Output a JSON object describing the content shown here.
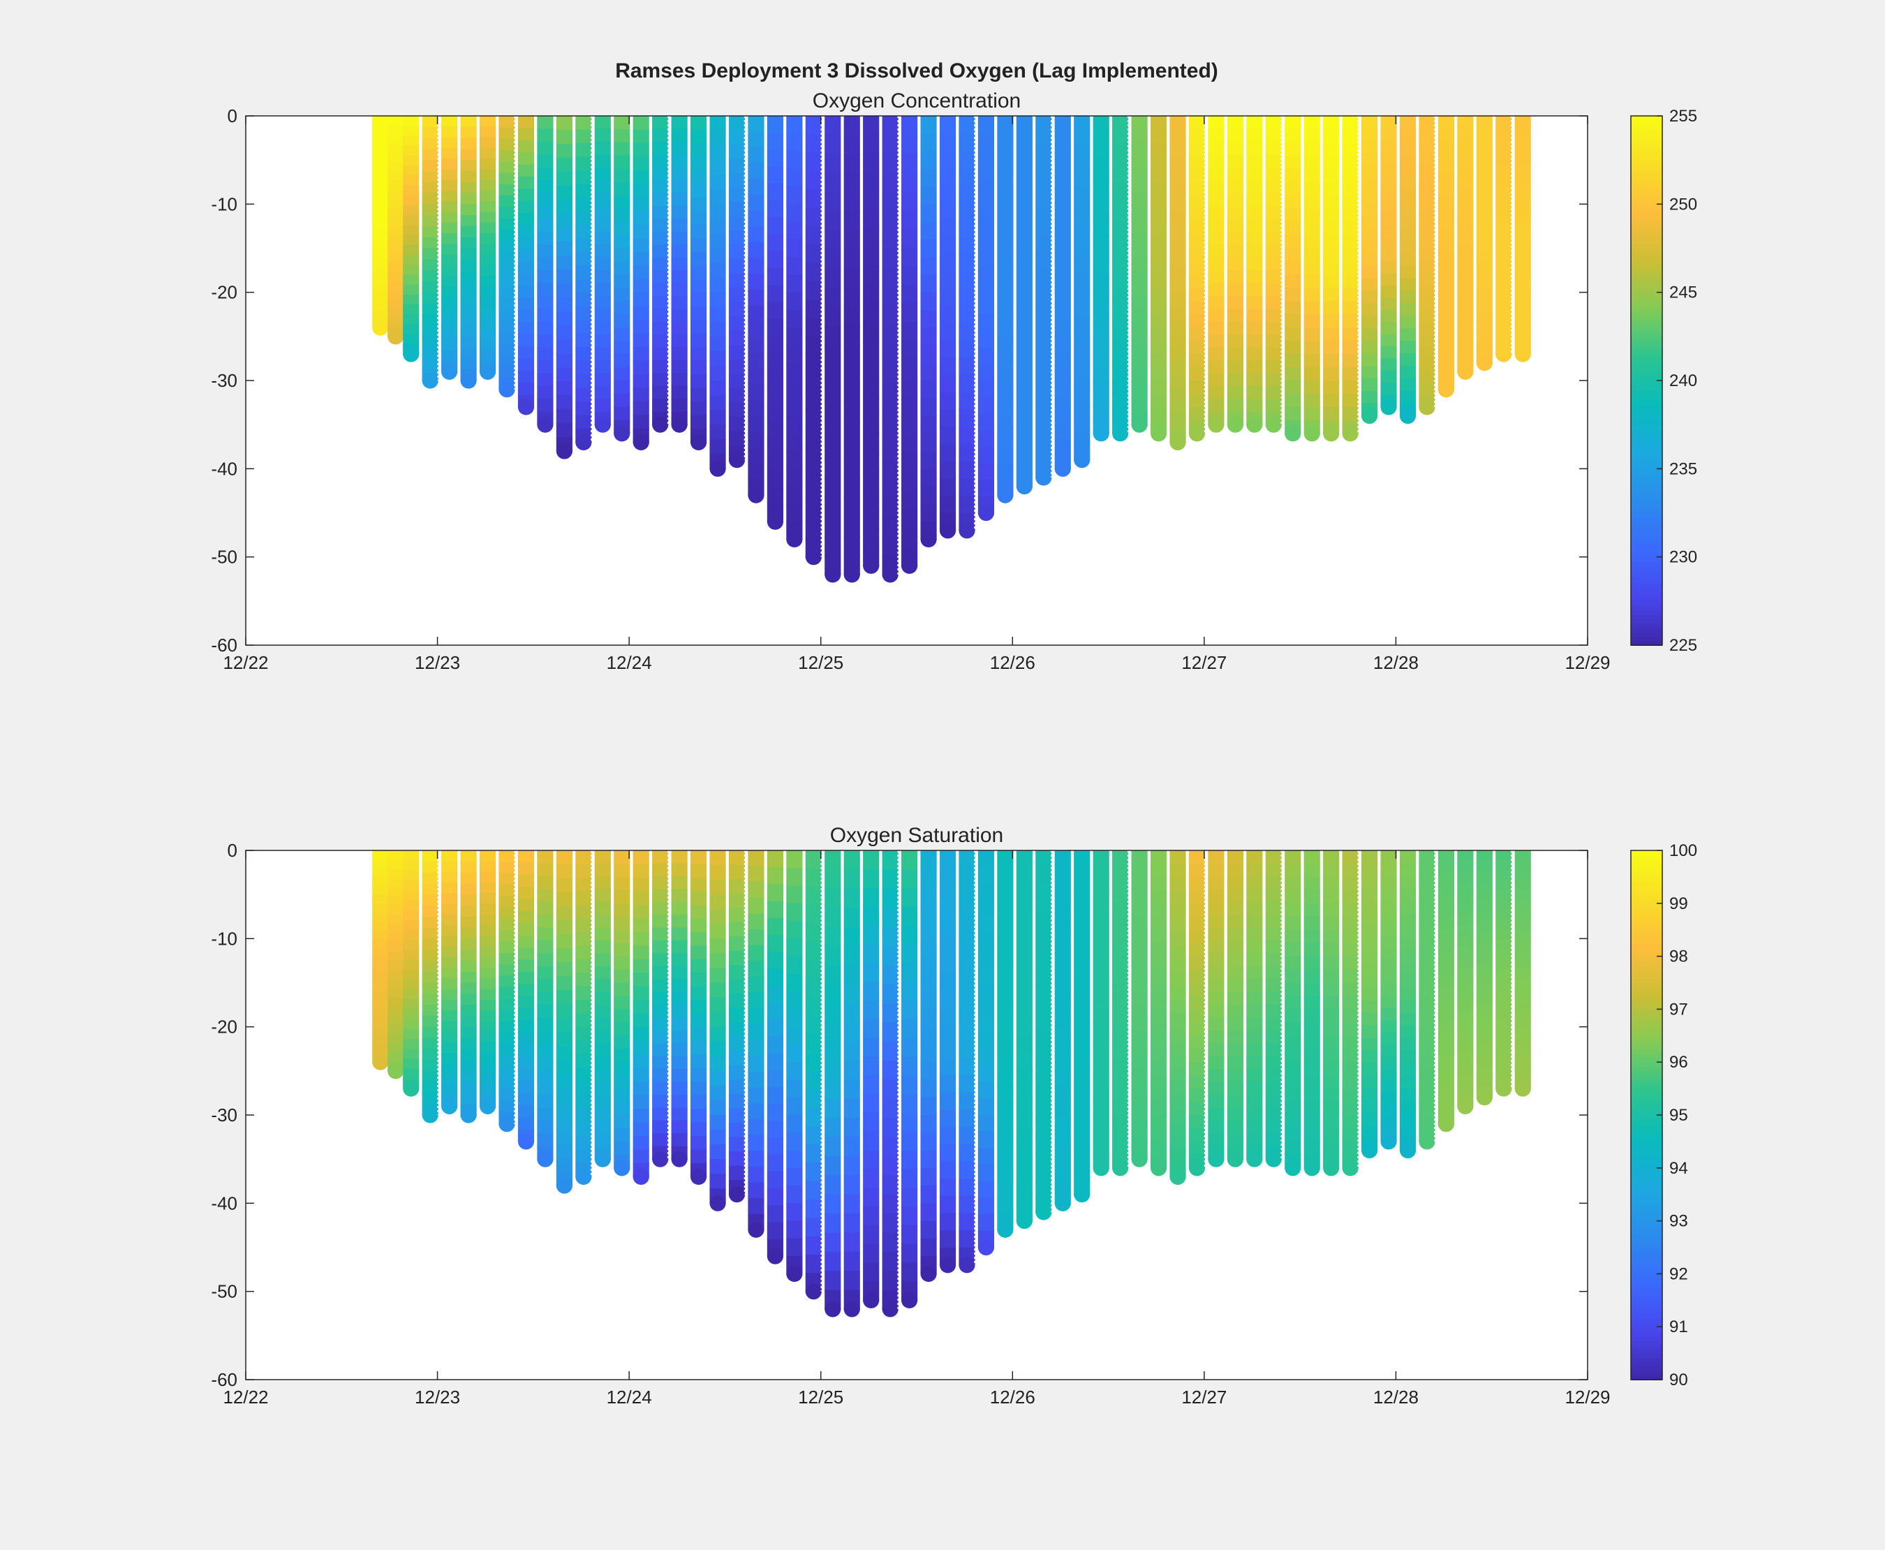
{
  "figure": {
    "title": "Ramses Deployment 3 Dissolved Oxygen (Lag Implemented)"
  },
  "colormap": [
    "#3e26a8",
    "#4746ec",
    "#3b69fe",
    "#2b8ced",
    "#1ca9df",
    "#09bbbc",
    "#2cc490",
    "#82cb56",
    "#ccbe35",
    "#fdbe3c",
    "#f9dd27",
    "#f9fb15"
  ],
  "chart_data": [
    {
      "type": "scatter",
      "title": "Oxygen Concentration",
      "xlabel": "",
      "ylabel": "",
      "x_ticks": [
        "12/22",
        "12/23",
        "12/24",
        "12/25",
        "12/26",
        "12/27",
        "12/28",
        "12/29"
      ],
      "xlim": [
        "12/22",
        "12/29"
      ],
      "ylim": [
        -60,
        0
      ],
      "y_ticks": [
        0,
        -10,
        -20,
        -30,
        -40,
        -50,
        -60
      ],
      "colorbar": {
        "min": 225,
        "max": 255,
        "ticks": [
          255,
          250,
          245,
          240,
          235,
          230,
          225
        ]
      },
      "grid": false,
      "columns": [
        {
          "day": 0.7,
          "bottom": -24,
          "surface": 255,
          "mid": 255,
          "deep": 253
        },
        {
          "day": 0.78,
          "bottom": -25,
          "surface": 255,
          "mid": 252,
          "deep": 248
        },
        {
          "day": 0.86,
          "bottom": -27,
          "surface": 255,
          "mid": 247,
          "deep": 238
        },
        {
          "day": 0.96,
          "bottom": -30,
          "surface": 253,
          "mid": 243,
          "deep": 235
        },
        {
          "day": 1.06,
          "bottom": -29,
          "surface": 254,
          "mid": 242,
          "deep": 234
        },
        {
          "day": 1.16,
          "bottom": -30,
          "surface": 253,
          "mid": 240,
          "deep": 233
        },
        {
          "day": 1.26,
          "bottom": -29,
          "surface": 251,
          "mid": 241,
          "deep": 234
        },
        {
          "day": 1.36,
          "bottom": -31,
          "surface": 249,
          "mid": 237,
          "deep": 232
        },
        {
          "day": 1.46,
          "bottom": -33,
          "surface": 248,
          "mid": 235,
          "deep": 227
        },
        {
          "day": 1.56,
          "bottom": -35,
          "surface": 243,
          "mid": 233,
          "deep": 226
        },
        {
          "day": 1.66,
          "bottom": -38,
          "surface": 245,
          "mid": 232,
          "deep": 225
        },
        {
          "day": 1.76,
          "bottom": -37,
          "surface": 244,
          "mid": 233,
          "deep": 226
        },
        {
          "day": 1.86,
          "bottom": -35,
          "surface": 242,
          "mid": 233,
          "deep": 227
        },
        {
          "day": 1.96,
          "bottom": -36,
          "surface": 244,
          "mid": 234,
          "deep": 226
        },
        {
          "day": 2.06,
          "bottom": -37,
          "surface": 243,
          "mid": 232,
          "deep": 225
        },
        {
          "day": 2.16,
          "bottom": -35,
          "surface": 241,
          "mid": 231,
          "deep": 225
        },
        {
          "day": 2.26,
          "bottom": -35,
          "surface": 240,
          "mid": 230,
          "deep": 225
        },
        {
          "day": 2.36,
          "bottom": -37,
          "surface": 240,
          "mid": 231,
          "deep": 225
        },
        {
          "day": 2.46,
          "bottom": -40,
          "surface": 238,
          "mid": 231,
          "deep": 225
        },
        {
          "day": 2.56,
          "bottom": -39,
          "surface": 237,
          "mid": 229,
          "deep": 225
        },
        {
          "day": 2.66,
          "bottom": -43,
          "surface": 236,
          "mid": 227,
          "deep": 225
        },
        {
          "day": 2.76,
          "bottom": -46,
          "surface": 232,
          "mid": 226,
          "deep": 225
        },
        {
          "day": 2.86,
          "bottom": -48,
          "surface": 231,
          "mid": 226,
          "deep": 225
        },
        {
          "day": 2.96,
          "bottom": -50,
          "surface": 229,
          "mid": 225,
          "deep": 225
        },
        {
          "day": 3.06,
          "bottom": -52,
          "surface": 227,
          "mid": 225,
          "deep": 225
        },
        {
          "day": 3.16,
          "bottom": -52,
          "surface": 226,
          "mid": 225,
          "deep": 225
        },
        {
          "day": 3.26,
          "bottom": -51,
          "surface": 226,
          "mid": 225,
          "deep": 225
        },
        {
          "day": 3.36,
          "bottom": -52,
          "surface": 227,
          "mid": 226,
          "deep": 225
        },
        {
          "day": 3.46,
          "bottom": -51,
          "surface": 229,
          "mid": 226,
          "deep": 225
        },
        {
          "day": 3.56,
          "bottom": -48,
          "surface": 235,
          "mid": 228,
          "deep": 225
        },
        {
          "day": 3.66,
          "bottom": -47,
          "surface": 231,
          "mid": 229,
          "deep": 225
        },
        {
          "day": 3.76,
          "bottom": -47,
          "surface": 232,
          "mid": 230,
          "deep": 226
        },
        {
          "day": 3.86,
          "bottom": -45,
          "surface": 232,
          "mid": 231,
          "deep": 227
        },
        {
          "day": 3.96,
          "bottom": -43,
          "surface": 233,
          "mid": 233,
          "deep": 232
        },
        {
          "day": 4.06,
          "bottom": -42,
          "surface": 233,
          "mid": 233,
          "deep": 233
        },
        {
          "day": 4.16,
          "bottom": -41,
          "surface": 234,
          "mid": 233,
          "deep": 233
        },
        {
          "day": 4.26,
          "bottom": -40,
          "surface": 233,
          "mid": 233,
          "deep": 232
        },
        {
          "day": 4.36,
          "bottom": -39,
          "surface": 235,
          "mid": 234,
          "deep": 233
        },
        {
          "day": 4.46,
          "bottom": -36,
          "surface": 239,
          "mid": 238,
          "deep": 236
        },
        {
          "day": 4.56,
          "bottom": -36,
          "surface": 241,
          "mid": 240,
          "deep": 238
        },
        {
          "day": 4.66,
          "bottom": -35,
          "surface": 244,
          "mid": 243,
          "deep": 242
        },
        {
          "day": 4.76,
          "bottom": -36,
          "surface": 247,
          "mid": 246,
          "deep": 244
        },
        {
          "day": 4.86,
          "bottom": -37,
          "surface": 249,
          "mid": 248,
          "deep": 245
        },
        {
          "day": 4.96,
          "bottom": -36,
          "surface": 254,
          "mid": 251,
          "deep": 245
        },
        {
          "day": 5.06,
          "bottom": -35,
          "surface": 255,
          "mid": 252,
          "deep": 245
        },
        {
          "day": 5.16,
          "bottom": -35,
          "surface": 255,
          "mid": 251,
          "deep": 244
        },
        {
          "day": 5.26,
          "bottom": -35,
          "surface": 255,
          "mid": 252,
          "deep": 244
        },
        {
          "day": 5.36,
          "bottom": -35,
          "surface": 255,
          "mid": 251,
          "deep": 244
        },
        {
          "day": 5.46,
          "bottom": -36,
          "surface": 255,
          "mid": 250,
          "deep": 243
        },
        {
          "day": 5.56,
          "bottom": -36,
          "surface": 255,
          "mid": 252,
          "deep": 244
        },
        {
          "day": 5.66,
          "bottom": -36,
          "surface": 255,
          "mid": 253,
          "deep": 245
        },
        {
          "day": 5.76,
          "bottom": -36,
          "surface": 255,
          "mid": 253,
          "deep": 245
        },
        {
          "day": 5.86,
          "bottom": -34,
          "surface": 252,
          "mid": 250,
          "deep": 241
        },
        {
          "day": 5.96,
          "bottom": -33,
          "surface": 251,
          "mid": 249,
          "deep": 239
        },
        {
          "day": 6.06,
          "bottom": -34,
          "surface": 250,
          "mid": 248,
          "deep": 238
        },
        {
          "day": 6.16,
          "bottom": -33,
          "surface": 250,
          "mid": 249,
          "deep": 246
        },
        {
          "day": 6.26,
          "bottom": -31,
          "surface": 251,
          "mid": 250,
          "deep": 250
        },
        {
          "day": 6.36,
          "bottom": -29,
          "surface": 251,
          "mid": 250,
          "deep": 250
        },
        {
          "day": 6.46,
          "bottom": -28,
          "surface": 251,
          "mid": 251,
          "deep": 250
        },
        {
          "day": 6.56,
          "bottom": -27,
          "surface": 250,
          "mid": 251,
          "deep": 251
        },
        {
          "day": 6.66,
          "bottom": -27,
          "surface": 250,
          "mid": 251,
          "deep": 251
        }
      ]
    },
    {
      "type": "scatter",
      "title": "Oxygen Saturation",
      "xlabel": "",
      "ylabel": "",
      "x_ticks": [
        "12/22",
        "12/23",
        "12/24",
        "12/25",
        "12/26",
        "12/27",
        "12/28",
        "12/29"
      ],
      "xlim": [
        "12/22",
        "12/29"
      ],
      "ylim": [
        -60,
        0
      ],
      "y_ticks": [
        0,
        -10,
        -20,
        -30,
        -40,
        -50,
        -60
      ],
      "colorbar": {
        "min": 90,
        "max": 100,
        "ticks": [
          100,
          99,
          98,
          97,
          96,
          95,
          94,
          93,
          92,
          91,
          90
        ]
      },
      "grid": false,
      "columns": [
        {
          "day": 0.7,
          "bottom": -24,
          "surface": 99.8,
          "mid": 98.2,
          "deep": 97.6
        },
        {
          "day": 0.78,
          "bottom": -25,
          "surface": 99.6,
          "mid": 97.9,
          "deep": 96.4
        },
        {
          "day": 0.86,
          "bottom": -27,
          "surface": 99.4,
          "mid": 97.4,
          "deep": 95.2
        },
        {
          "day": 0.96,
          "bottom": -30,
          "surface": 99.5,
          "mid": 96.6,
          "deep": 94.1
        },
        {
          "day": 1.06,
          "bottom": -29,
          "surface": 99.3,
          "mid": 96.4,
          "deep": 93.6
        },
        {
          "day": 1.16,
          "bottom": -30,
          "surface": 99.0,
          "mid": 96.0,
          "deep": 93.3
        },
        {
          "day": 1.26,
          "bottom": -29,
          "surface": 98.7,
          "mid": 96.2,
          "deep": 93.5
        },
        {
          "day": 1.36,
          "bottom": -31,
          "surface": 98.5,
          "mid": 95.5,
          "deep": 92.8
        },
        {
          "day": 1.46,
          "bottom": -33,
          "surface": 98.4,
          "mid": 95.2,
          "deep": 92.0
        },
        {
          "day": 1.56,
          "bottom": -35,
          "surface": 97.8,
          "mid": 95.0,
          "deep": 92.4
        },
        {
          "day": 1.66,
          "bottom": -38,
          "surface": 98.1,
          "mid": 95.1,
          "deep": 92.8
        },
        {
          "day": 1.76,
          "bottom": -37,
          "surface": 97.9,
          "mid": 95.5,
          "deep": 93.0
        },
        {
          "day": 1.86,
          "bottom": -35,
          "surface": 97.7,
          "mid": 95.2,
          "deep": 93.3
        },
        {
          "day": 1.96,
          "bottom": -36,
          "surface": 98.0,
          "mid": 95.6,
          "deep": 92.5
        },
        {
          "day": 2.06,
          "bottom": -37,
          "surface": 98.0,
          "mid": 95.0,
          "deep": 90.8
        },
        {
          "day": 2.16,
          "bottom": -35,
          "surface": 97.8,
          "mid": 94.5,
          "deep": 90.3
        },
        {
          "day": 2.26,
          "bottom": -35,
          "surface": 97.8,
          "mid": 94.2,
          "deep": 90.2
        },
        {
          "day": 2.36,
          "bottom": -37,
          "surface": 97.9,
          "mid": 94.5,
          "deep": 90.2
        },
        {
          "day": 2.46,
          "bottom": -40,
          "surface": 97.8,
          "mid": 95.0,
          "deep": 90.1
        },
        {
          "day": 2.56,
          "bottom": -39,
          "surface": 97.6,
          "mid": 94.5,
          "deep": 90.0
        },
        {
          "day": 2.66,
          "bottom": -43,
          "surface": 97.4,
          "mid": 94.0,
          "deep": 90.0
        },
        {
          "day": 2.76,
          "bottom": -46,
          "surface": 97.0,
          "mid": 93.0,
          "deep": 90.0
        },
        {
          "day": 2.86,
          "bottom": -48,
          "surface": 96.5,
          "mid": 93.5,
          "deep": 90.0
        },
        {
          "day": 2.96,
          "bottom": -50,
          "surface": 95.8,
          "mid": 94.5,
          "deep": 90.0
        },
        {
          "day": 3.06,
          "bottom": -52,
          "surface": 95.5,
          "mid": 94.0,
          "deep": 90.0
        },
        {
          "day": 3.16,
          "bottom": -52,
          "surface": 95.4,
          "mid": 93.2,
          "deep": 90.0
        },
        {
          "day": 3.26,
          "bottom": -51,
          "surface": 95.4,
          "mid": 92.0,
          "deep": 90.0
        },
        {
          "day": 3.36,
          "bottom": -52,
          "surface": 95.2,
          "mid": 91.5,
          "deep": 90.0
        },
        {
          "day": 3.46,
          "bottom": -51,
          "surface": 95.6,
          "mid": 92.5,
          "deep": 90.0
        },
        {
          "day": 3.56,
          "bottom": -48,
          "surface": 94.0,
          "mid": 93.0,
          "deep": 90.0
        },
        {
          "day": 3.66,
          "bottom": -47,
          "surface": 93.8,
          "mid": 93.2,
          "deep": 90.1
        },
        {
          "day": 3.76,
          "bottom": -47,
          "surface": 94.0,
          "mid": 93.6,
          "deep": 90.3
        },
        {
          "day": 3.86,
          "bottom": -45,
          "surface": 94.2,
          "mid": 94.0,
          "deep": 91.0
        },
        {
          "day": 3.96,
          "bottom": -43,
          "surface": 94.6,
          "mid": 94.6,
          "deep": 94.3
        },
        {
          "day": 4.06,
          "bottom": -42,
          "surface": 94.8,
          "mid": 94.8,
          "deep": 94.6
        },
        {
          "day": 4.16,
          "bottom": -41,
          "surface": 94.8,
          "mid": 94.7,
          "deep": 94.6
        },
        {
          "day": 4.26,
          "bottom": -40,
          "surface": 94.3,
          "mid": 94.3,
          "deep": 94.2
        },
        {
          "day": 4.36,
          "bottom": -39,
          "surface": 94.5,
          "mid": 94.5,
          "deep": 94.4
        },
        {
          "day": 4.46,
          "bottom": -36,
          "surface": 95.2,
          "mid": 95.1,
          "deep": 95.0
        },
        {
          "day": 4.56,
          "bottom": -36,
          "surface": 95.6,
          "mid": 95.5,
          "deep": 95.3
        },
        {
          "day": 4.66,
          "bottom": -35,
          "surface": 96.0,
          "mid": 95.9,
          "deep": 95.6
        },
        {
          "day": 4.76,
          "bottom": -36,
          "surface": 96.4,
          "mid": 96.0,
          "deep": 95.6
        },
        {
          "day": 4.86,
          "bottom": -37,
          "surface": 97.2,
          "mid": 96.2,
          "deep": 95.4
        },
        {
          "day": 4.96,
          "bottom": -36,
          "surface": 98.1,
          "mid": 96.6,
          "deep": 95.2
        },
        {
          "day": 5.06,
          "bottom": -35,
          "surface": 97.8,
          "mid": 96.4,
          "deep": 95.0
        },
        {
          "day": 5.16,
          "bottom": -35,
          "surface": 97.5,
          "mid": 96.2,
          "deep": 95.2
        },
        {
          "day": 5.26,
          "bottom": -35,
          "surface": 97.2,
          "mid": 96.0,
          "deep": 95.0
        },
        {
          "day": 5.36,
          "bottom": -35,
          "surface": 97.0,
          "mid": 95.8,
          "deep": 94.8
        },
        {
          "day": 5.46,
          "bottom": -36,
          "surface": 96.8,
          "mid": 95.6,
          "deep": 94.8
        },
        {
          "day": 5.56,
          "bottom": -36,
          "surface": 96.5,
          "mid": 95.4,
          "deep": 94.9
        },
        {
          "day": 5.66,
          "bottom": -36,
          "surface": 96.7,
          "mid": 95.8,
          "deep": 95.2
        },
        {
          "day": 5.76,
          "bottom": -36,
          "surface": 97.0,
          "mid": 96.0,
          "deep": 95.4
        },
        {
          "day": 5.86,
          "bottom": -34,
          "surface": 96.8,
          "mid": 96.2,
          "deep": 94.4
        },
        {
          "day": 5.96,
          "bottom": -33,
          "surface": 96.6,
          "mid": 96.0,
          "deep": 94.0
        },
        {
          "day": 6.06,
          "bottom": -34,
          "surface": 96.4,
          "mid": 95.8,
          "deep": 94.2
        },
        {
          "day": 6.16,
          "bottom": -33,
          "surface": 96.0,
          "mid": 96.0,
          "deep": 95.8
        },
        {
          "day": 6.26,
          "bottom": -31,
          "surface": 95.9,
          "mid": 96.2,
          "deep": 96.5
        },
        {
          "day": 6.36,
          "bottom": -29,
          "surface": 95.8,
          "mid": 96.2,
          "deep": 96.6
        },
        {
          "day": 6.46,
          "bottom": -28,
          "surface": 95.8,
          "mid": 96.2,
          "deep": 96.6
        },
        {
          "day": 6.56,
          "bottom": -27,
          "surface": 95.8,
          "mid": 96.3,
          "deep": 96.6
        },
        {
          "day": 6.66,
          "bottom": -27,
          "surface": 95.9,
          "mid": 96.3,
          "deep": 96.7
        }
      ]
    }
  ]
}
